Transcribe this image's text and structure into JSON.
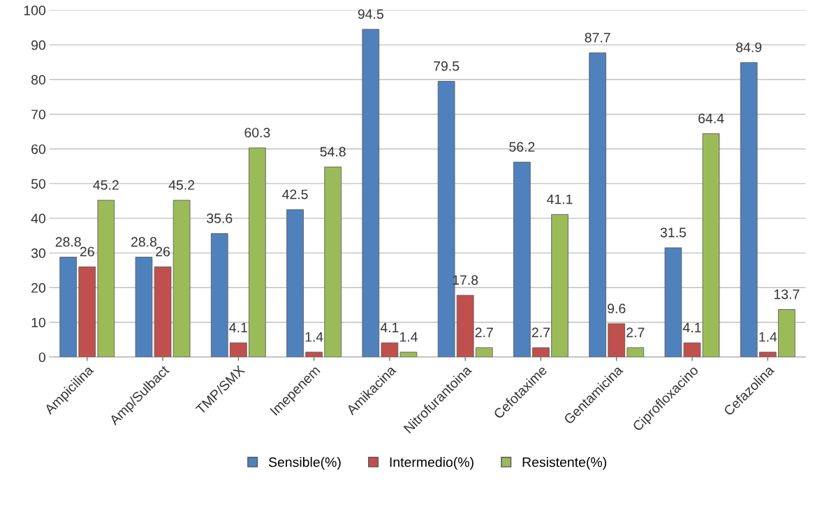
{
  "chart_data": {
    "type": "bar",
    "categories": [
      "Ampicilina",
      "Amp/Sulbact",
      "TMP/SMX",
      "Imepenem",
      "Amikacina",
      "Nitrofurantoina",
      "Cefotaxime",
      "Gentamicina",
      "Ciprofloxacino",
      "Cefazolina"
    ],
    "series": [
      {
        "name": "Sensible(%)",
        "color": "#4f81bd",
        "values": [
          28.8,
          28.8,
          35.6,
          42.5,
          94.5,
          79.5,
          56.2,
          87.7,
          31.5,
          84.9
        ]
      },
      {
        "name": "Intermedio(%)",
        "color": "#c0504d",
        "values": [
          26,
          26,
          4.1,
          1.4,
          4.1,
          17.8,
          2.7,
          9.6,
          4.1,
          1.4
        ]
      },
      {
        "name": "Resistente(%)",
        "color": "#9bbb59",
        "values": [
          45.2,
          45.2,
          60.3,
          54.8,
          1.4,
          2.7,
          41.1,
          2.7,
          64.4,
          13.7
        ]
      }
    ],
    "ylim": [
      0,
      100
    ],
    "yticks": [
      0,
      10,
      20,
      30,
      40,
      50,
      60,
      70,
      80,
      90,
      100
    ],
    "grid": "y",
    "legend": "bottom",
    "data_labels": true
  }
}
